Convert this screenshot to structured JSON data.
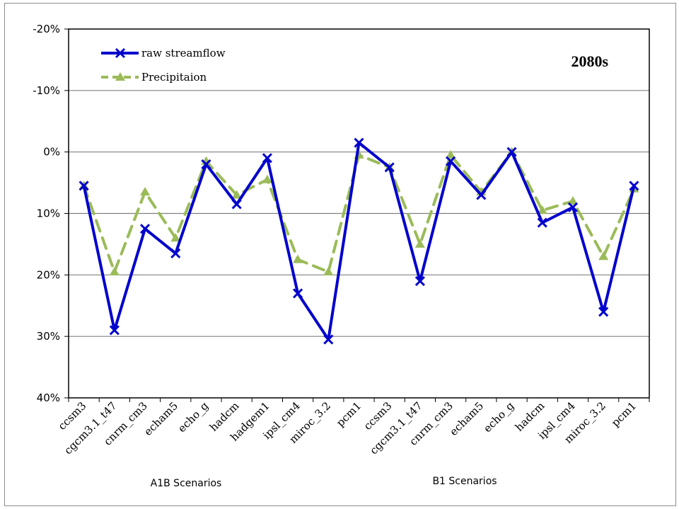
{
  "chart_data": {
    "type": "line",
    "annotation": "2080s",
    "group_labels": [
      "A1B Scenarios",
      "B1 Scenarios"
    ],
    "categories": [
      "ccsm3",
      "cgcm3.1_t47",
      "cnrm_cm3",
      "echam5",
      "echo_g",
      "hadcm",
      "hadgem1",
      "ipsl_cm4",
      "miroc_3.2",
      "pcm1",
      "ccsm3",
      "cgcm3.1_t47",
      "cnrm_cm3",
      "echam5",
      "echo_g",
      "hadcm",
      "ipsl_cm4",
      "miroc_3.2",
      "pcm1"
    ],
    "y_ticks": [
      "-20%",
      "-10%",
      "0%",
      "10%",
      "20%",
      "30%",
      "40%"
    ],
    "y_tick_values": [
      -20,
      -10,
      0,
      10,
      20,
      30,
      40
    ],
    "ylim": [
      -20,
      40
    ],
    "y_inverted": true,
    "grid": true,
    "legend_position": "top-left",
    "series": [
      {
        "name": "raw streamflow",
        "color": "#0000cc",
        "style": "solid",
        "marker": "x",
        "values": [
          5.5,
          29,
          12.5,
          16.5,
          2,
          8.5,
          1,
          23,
          30.5,
          -1.5,
          2.5,
          21,
          1.5,
          7,
          0,
          11.5,
          9,
          26,
          5.5
        ]
      },
      {
        "name": "Precipitaion",
        "color": "#9bbb59",
        "style": "dashed",
        "marker": "triangle",
        "values": [
          5.5,
          19.5,
          6.5,
          14,
          1.5,
          7,
          4.5,
          17.5,
          19.5,
          0.5,
          2.5,
          15,
          0.5,
          6.5,
          0,
          9.5,
          8,
          17,
          6
        ]
      }
    ]
  }
}
